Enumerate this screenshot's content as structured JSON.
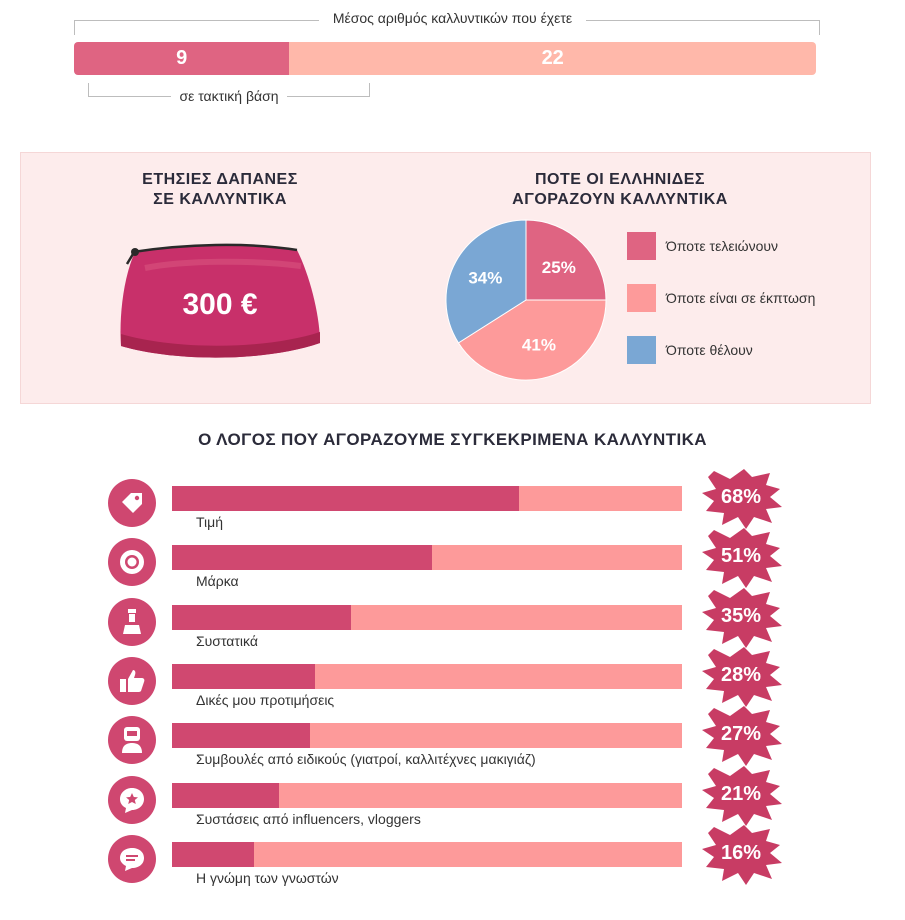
{
  "colors": {
    "dark_pink": "#df6482",
    "light_peach": "#ffb8aa",
    "pie_dark_pink": "#df6482",
    "pie_peach": "#fd9a9a",
    "pie_blue": "#7aa7d4",
    "bar_fill": "#d04870",
    "bar_track": "#fd9a9a",
    "icon_bg": "#cf4770",
    "badge": "#c83c64",
    "purse": "#c8306a"
  },
  "top": {
    "caption": "Μέσος αριθμός καλλυντικών που έχετε",
    "regular_caption": "σε τακτική βάση",
    "regular_value": "9",
    "total_value": "22"
  },
  "annual": {
    "title_line1": "ΕΤΗΣΙΕΣ ΔΑΠΑΝΕΣ",
    "title_line2": "ΣΕ ΚΑΛΛΥΝΤΙΚΑ",
    "amount": "300 €"
  },
  "when": {
    "title_line1": "ΠΟΤΕ ΟΙ ΕΛΛΗΝΙΔΕΣ",
    "title_line2": "ΑΓΟΡΑΖΟΥΝ ΚΑΛΛΥΝΤΙΚΑ"
  },
  "reasons": {
    "title": "Ο ΛΟΓΟΣ ΠΟΥ ΑΓΟΡΑΖΟΥΜΕ ΣΥΓΚΕΚΡΙΜΕΝΑ ΚΑΛΛΥΝΤΙΚΑ"
  },
  "chart_data": [
    {
      "type": "bar",
      "orientation": "horizontal-stacked",
      "title": "Μέσος αριθμός καλλυντικών που έχετε",
      "categories": [
        "σε τακτική βάση",
        ""
      ],
      "values": [
        9,
        22
      ],
      "labels": [
        "9",
        "22"
      ]
    },
    {
      "type": "pie",
      "title": "ΠΟΤΕ ΟΙ ΕΛΛΗΝΙΔΕΣ ΑΓΟΡΑΖΟΥΝ ΚΑΛΛΥΝΤΙΚΑ",
      "slices": [
        {
          "name": "Όποτε τελειώνουν",
          "value": 25,
          "label": "25%",
          "color": "#df6482"
        },
        {
          "name": "Όποτε είναι σε έκπτωση",
          "value": 41,
          "label": "41%",
          "color": "#fd9a9a"
        },
        {
          "name": "Όποτε θέλουν",
          "value": 34,
          "label": "34%",
          "color": "#7aa7d4"
        }
      ],
      "legend": "right"
    },
    {
      "type": "bar",
      "orientation": "horizontal",
      "title": "Ο ΛΟΓΟΣ ΠΟΥ ΑΓΟΡΑΖΟΥΜΕ ΣΥΓΚΕΚΡΙΜΕΝΑ ΚΑΛΛΥΝΤΙΚΑ",
      "xlim": [
        0,
        100
      ],
      "rows": [
        {
          "label": "Τιμή",
          "value": 68,
          "pct": "68%",
          "icon": "tag-icon"
        },
        {
          "label": "Μάρκα",
          "value": 51,
          "pct": "51%",
          "icon": "brand-seal-icon"
        },
        {
          "label": "Συστατικά",
          "value": 35,
          "pct": "35%",
          "icon": "flask-icon"
        },
        {
          "label": "Δικές μου προτιμήσεις",
          "value": 28,
          "pct": "28%",
          "icon": "thumbs-up-icon"
        },
        {
          "label": "Συμβουλές από ειδικούς (γιατροί, καλλιτέχνες μακιγιάζ)",
          "value": 27,
          "pct": "27%",
          "icon": "doctor-icon"
        },
        {
          "label": "Συστάσεις από influencers, vloggers",
          "value": 21,
          "pct": "21%",
          "icon": "star-chat-icon"
        },
        {
          "label": "Η γνώμη των γνωστών",
          "value": 16,
          "pct": "16%",
          "icon": "chat-bubble-icon"
        }
      ]
    }
  ]
}
